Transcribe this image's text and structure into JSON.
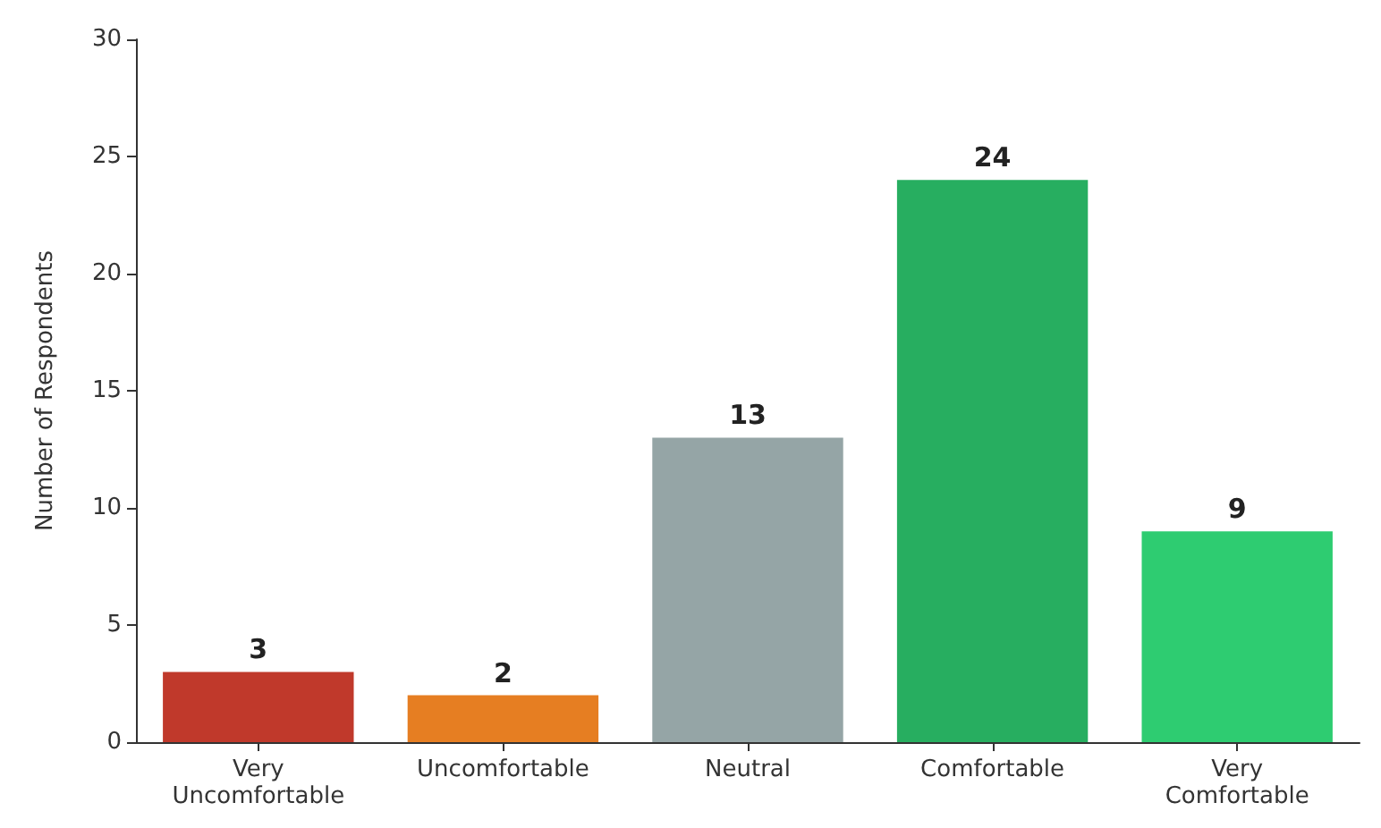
{
  "chart_data": {
    "type": "bar",
    "ylabel": "Number of Respondents",
    "categories": [
      "Very\nUncomfortable",
      "Uncomfortable",
      "Neutral",
      "Comfortable",
      "Very\nComfortable"
    ],
    "values": [
      3,
      2,
      13,
      24,
      9
    ],
    "colors": [
      "#c0392b",
      "#e67e22",
      "#95a5a6",
      "#27ae60",
      "#2ecc71"
    ],
    "ylim": [
      0,
      30
    ],
    "yticks": [
      0,
      5,
      10,
      15,
      20,
      25,
      30
    ],
    "grid": false,
    "data_labels": true
  }
}
